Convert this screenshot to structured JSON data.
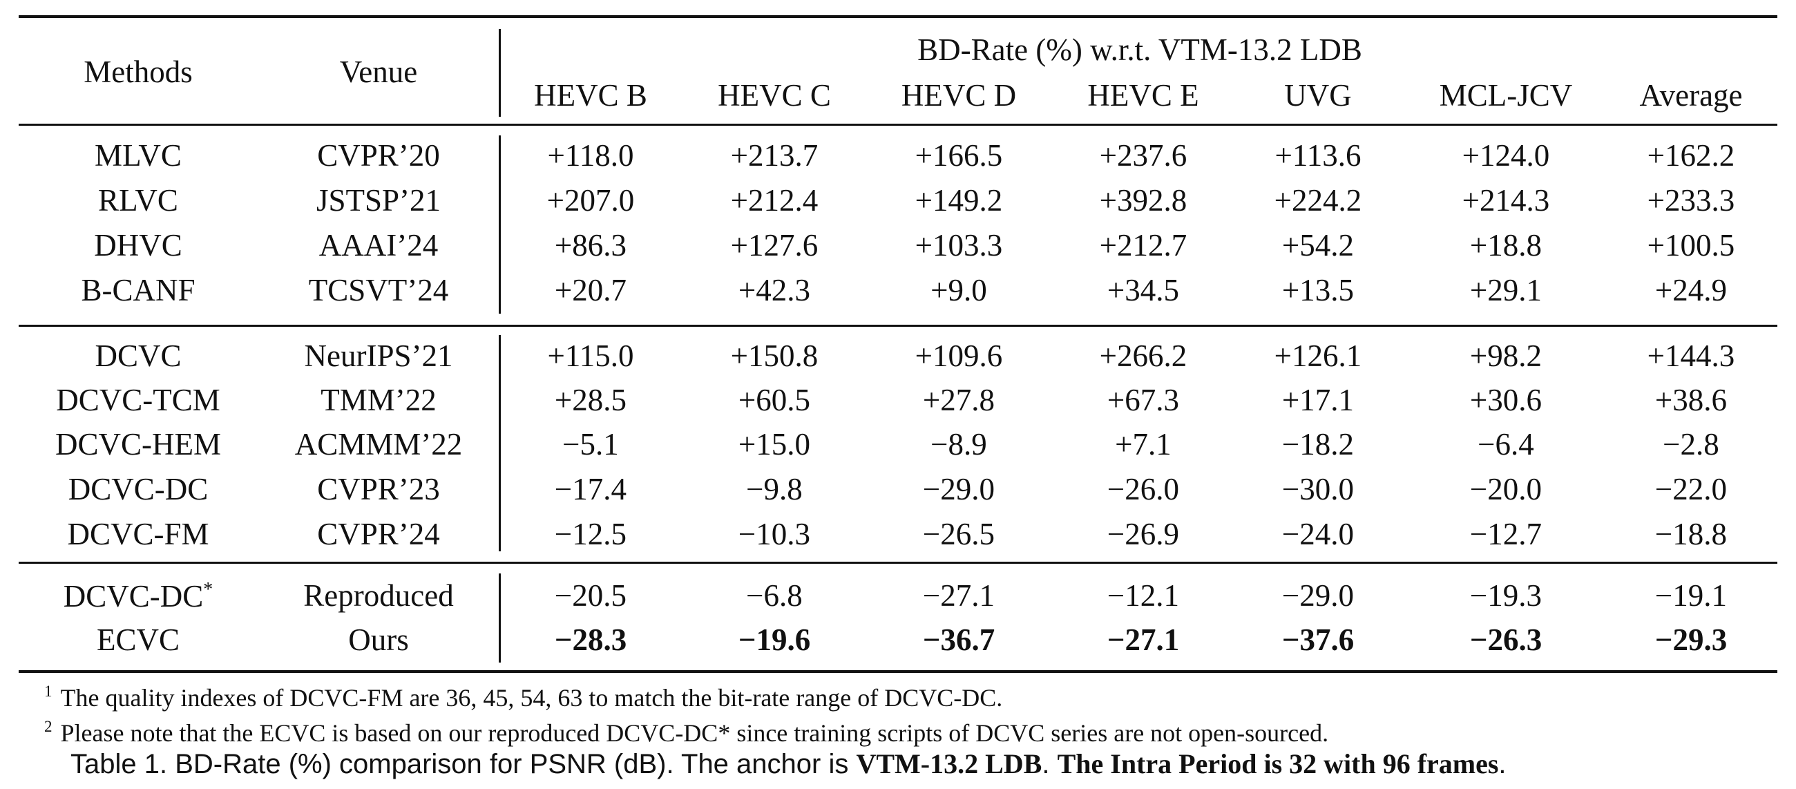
{
  "table": {
    "headers": {
      "methods": "Methods",
      "venue": "Venue",
      "group_title": "BD-Rate (%) w.r.t. VTM-13.2 LDB",
      "columns": [
        "HEVC B",
        "HEVC C",
        "HEVC D",
        "HEVC E",
        "UVG",
        "MCL-JCV",
        "Average"
      ]
    },
    "groups": [
      {
        "rows": [
          {
            "method": "MLVC",
            "venue": "CVPR’20",
            "values": [
              "+118.0",
              "+213.7",
              "+166.5",
              "+237.6",
              "+113.6",
              "+124.0",
              "+162.2"
            ]
          },
          {
            "method": "RLVC",
            "venue": "JSTSP’21",
            "values": [
              "+207.0",
              "+212.4",
              "+149.2",
              "+392.8",
              "+224.2",
              "+214.3",
              "+233.3"
            ]
          },
          {
            "method": "DHVC",
            "venue": "AAAI’24",
            "values": [
              "+86.3",
              "+127.6",
              "+103.3",
              "+212.7",
              "+54.2",
              "+18.8",
              "+100.5"
            ]
          },
          {
            "method": "B-CANF",
            "venue": "TCSVT’24",
            "values": [
              "+20.7",
              "+42.3",
              "+9.0",
              "+34.5",
              "+13.5",
              "+29.1",
              "+24.9"
            ]
          }
        ]
      },
      {
        "rows": [
          {
            "method": "DCVC",
            "venue": "NeurIPS’21",
            "values": [
              "+115.0",
              "+150.8",
              "+109.6",
              "+266.2",
              "+126.1",
              "+98.2",
              "+144.3"
            ]
          },
          {
            "method": "DCVC-TCM",
            "venue": "TMM’22",
            "values": [
              "+28.5",
              "+60.5",
              "+27.8",
              "+67.3",
              "+17.1",
              "+30.6",
              "+38.6"
            ]
          },
          {
            "method": "DCVC-HEM",
            "venue": "ACMMM’22",
            "values": [
              "−5.1",
              "+15.0",
              "−8.9",
              "+7.1",
              "−18.2",
              "−6.4",
              "−2.8"
            ]
          },
          {
            "method": "DCVC-DC",
            "venue": "CVPR’23",
            "values": [
              "−17.4",
              "−9.8",
              "−29.0",
              "−26.0",
              "−30.0",
              "−20.0",
              "−22.0"
            ]
          },
          {
            "method": "DCVC-FM",
            "venue": "CVPR’24",
            "values": [
              "−12.5",
              "−10.3",
              "−26.5",
              "−26.9",
              "−24.0",
              "−12.7",
              "−18.8"
            ]
          }
        ]
      },
      {
        "rows": [
          {
            "method": "DCVC-DC*",
            "venue": "Reproduced",
            "values": [
              "−20.5",
              "−6.8",
              "−27.1",
              "−12.1",
              "−29.0",
              "−19.3",
              "−19.1"
            ]
          },
          {
            "method": "ECVC",
            "venue": "Ours",
            "bold": true,
            "values": [
              "−28.3",
              "−19.6",
              "−36.7",
              "−27.1",
              "−37.6",
              "−26.3",
              "−29.3"
            ]
          }
        ]
      }
    ]
  },
  "footnotes": [
    {
      "mark": "1",
      "text": "The quality indexes of DCVC-FM are 36, 45, 54, 63 to match the bit-rate range of DCVC-DC."
    },
    {
      "mark": "2",
      "text": "Please note that the ECVC is based on our reproduced DCVC-DC* since training scripts of DCVC series are not open-sourced."
    }
  ],
  "caption": {
    "prefix": "Table 1. BD-Rate (%) comparison for PSNR (dB). The anchor is ",
    "bold1": "VTM-13.2 LDB",
    "middle": ". ",
    "bold2": "The Intra Period is 32 with 96 frames",
    "suffix": "."
  }
}
